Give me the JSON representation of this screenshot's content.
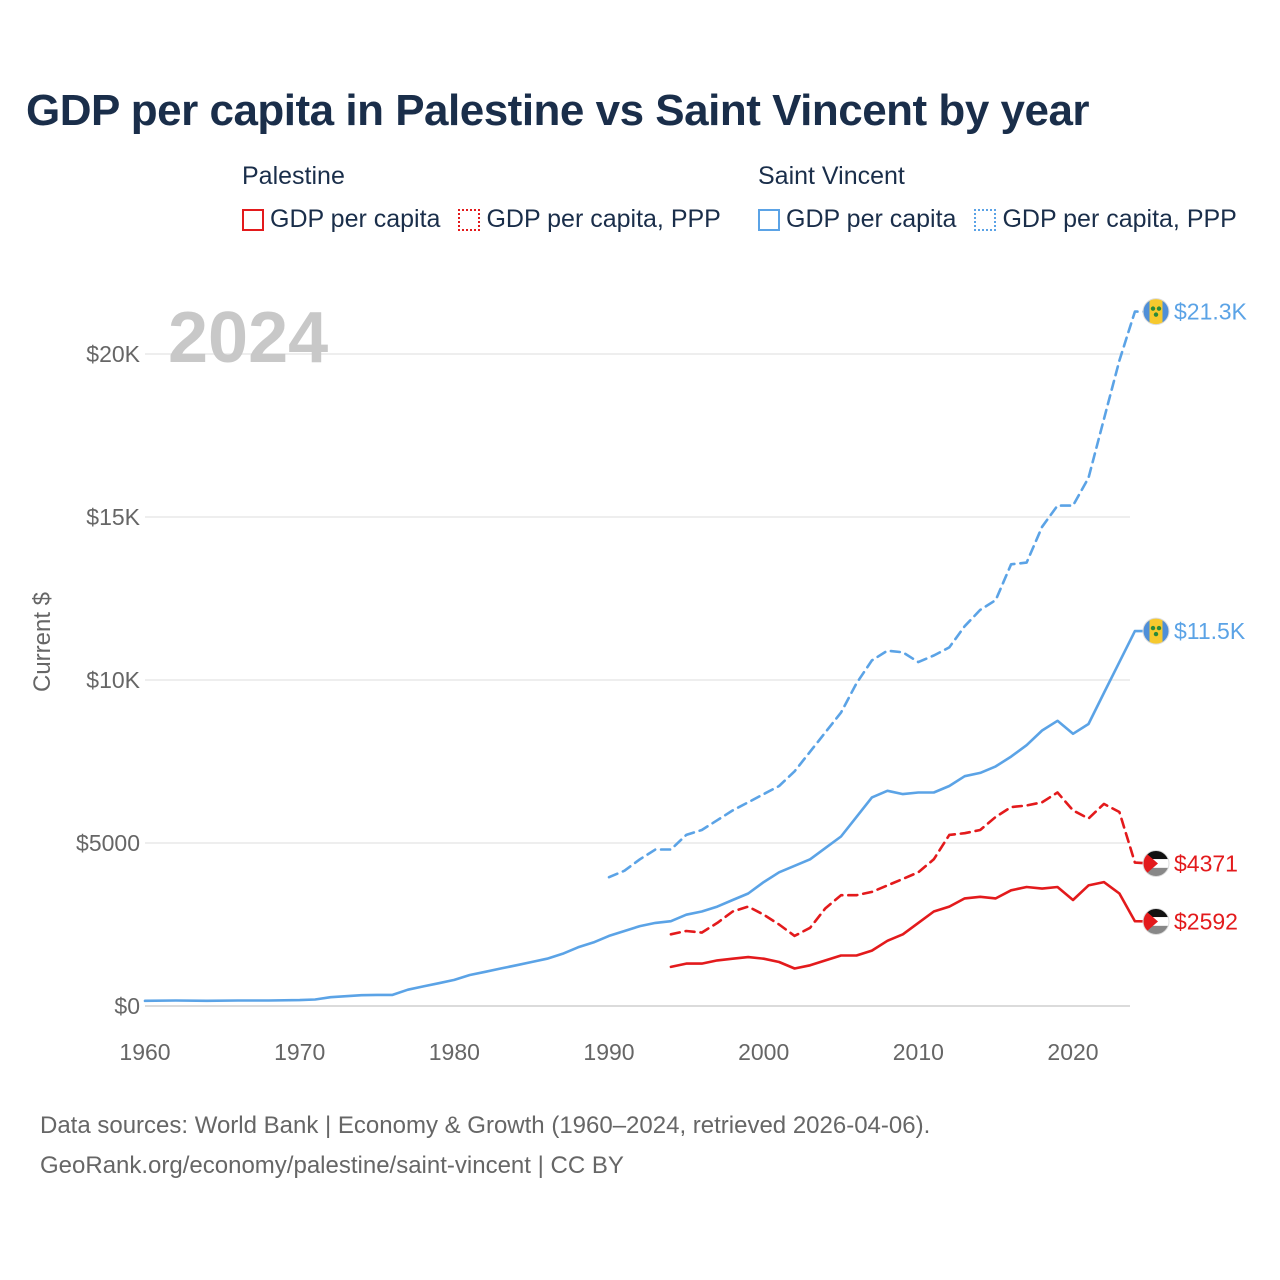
{
  "title": "GDP per capita in Palestine vs Saint Vincent by year",
  "legend": {
    "palestine": {
      "name": "Palestine",
      "gdp": "GDP per capita",
      "ppp": "GDP per capita, PPP",
      "color": "#e31a1c"
    },
    "saint_vincent": {
      "name": "Saint Vincent",
      "gdp": "GDP per capita",
      "ppp": "GDP per capita, PPP",
      "color": "#5ba3e6"
    }
  },
  "footer": {
    "line1": "Data sources: World Bank | Economy & Growth (1960–2024, retrieved 2026-04-06).",
    "line2": "GeoRank.org/economy/palestine/saint-vincent | CC BY"
  },
  "chart_data": {
    "type": "line",
    "title": "GDP per capita in Palestine vs Saint Vincent by year",
    "year_label": "2024",
    "xlabel": "",
    "ylabel": "Current $",
    "xlim": [
      1960,
      2025
    ],
    "ylim": [
      0,
      22000
    ],
    "x_ticks": [
      1960,
      1970,
      1980,
      1990,
      2000,
      2010,
      2020
    ],
    "x_tick_labels": [
      "1960",
      "1970",
      "1980",
      "1990",
      "2000",
      "2010",
      "2020"
    ],
    "y_ticks": [
      0,
      5000,
      10000,
      15000,
      20000
    ],
    "y_tick_labels": [
      "$0",
      "$5000",
      "$10K",
      "$15K",
      "$20K"
    ],
    "grid": true,
    "series": [
      {
        "name": "Saint Vincent GDP per capita, PPP",
        "country": "Saint Vincent",
        "style": "dashed",
        "color": "#5ba3e6",
        "end_label": "$21.3K",
        "x": [
          1990,
          1991,
          1992,
          1993,
          1994,
          1995,
          1996,
          1997,
          1998,
          1999,
          2000,
          2001,
          2002,
          2003,
          2004,
          2005,
          2006,
          2007,
          2008,
          2009,
          2010,
          2011,
          2012,
          2013,
          2014,
          2015,
          2016,
          2017,
          2018,
          2019,
          2020,
          2021,
          2022,
          2023,
          2024,
          2025
        ],
        "values": [
          3950,
          4150,
          4500,
          4800,
          4800,
          5250,
          5400,
          5700,
          6000,
          6250,
          6500,
          6750,
          7200,
          7800,
          8400,
          9000,
          9900,
          10600,
          10900,
          10850,
          10550,
          10750,
          11000,
          11650,
          12150,
          12450,
          13550,
          13600,
          14700,
          15350,
          15350,
          16200,
          18000,
          19800,
          21300,
          21300
        ]
      },
      {
        "name": "Saint Vincent GDP per capita",
        "country": "Saint Vincent",
        "style": "solid",
        "color": "#5ba3e6",
        "end_label": "$11.5K",
        "x": [
          1960,
          1962,
          1964,
          1966,
          1968,
          1970,
          1971,
          1972,
          1973,
          1974,
          1975,
          1976,
          1977,
          1978,
          1979,
          1980,
          1981,
          1982,
          1983,
          1984,
          1985,
          1986,
          1987,
          1988,
          1989,
          1990,
          1991,
          1992,
          1993,
          1994,
          1995,
          1996,
          1997,
          1998,
          1999,
          2000,
          2001,
          2002,
          2003,
          2004,
          2005,
          2006,
          2007,
          2008,
          2009,
          2010,
          2011,
          2012,
          2013,
          2014,
          2015,
          2016,
          2017,
          2018,
          2019,
          2020,
          2021,
          2022,
          2023,
          2024,
          2025
        ],
        "values": [
          160,
          170,
          160,
          170,
          170,
          180,
          200,
          270,
          300,
          330,
          340,
          340,
          500,
          600,
          700,
          800,
          950,
          1050,
          1150,
          1250,
          1350,
          1450,
          1600,
          1800,
          1950,
          2150,
          2300,
          2450,
          2550,
          2600,
          2800,
          2900,
          3050,
          3250,
          3450,
          3800,
          4100,
          4300,
          4500,
          4850,
          5200,
          5800,
          6400,
          6600,
          6500,
          6550,
          6550,
          6750,
          7050,
          7150,
          7350,
          7650,
          8000,
          8450,
          8750,
          8350,
          8650,
          9600,
          10550,
          11500,
          11500
        ]
      },
      {
        "name": "Palestine GDP per capita, PPP",
        "country": "Palestine",
        "style": "dashed",
        "color": "#e31a1c",
        "end_label": "$4371",
        "x": [
          1994,
          1995,
          1996,
          1997,
          1998,
          1999,
          2000,
          2001,
          2002,
          2003,
          2004,
          2005,
          2006,
          2007,
          2008,
          2009,
          2010,
          2011,
          2012,
          2013,
          2014,
          2015,
          2016,
          2017,
          2018,
          2019,
          2020,
          2021,
          2022,
          2023,
          2024,
          2025
        ],
        "values": [
          2200,
          2300,
          2250,
          2550,
          2900,
          3050,
          2800,
          2500,
          2150,
          2400,
          3000,
          3400,
          3400,
          3500,
          3700,
          3900,
          4100,
          4500,
          5250,
          5300,
          5400,
          5800,
          6100,
          6150,
          6250,
          6550,
          6000,
          5750,
          6200,
          5950,
          4400,
          4371
        ]
      },
      {
        "name": "Palestine GDP per capita",
        "country": "Palestine",
        "style": "solid",
        "color": "#e31a1c",
        "end_label": "$2592",
        "x": [
          1994,
          1995,
          1996,
          1997,
          1998,
          1999,
          2000,
          2001,
          2002,
          2003,
          2004,
          2005,
          2006,
          2007,
          2008,
          2009,
          2010,
          2011,
          2012,
          2013,
          2014,
          2015,
          2016,
          2017,
          2018,
          2019,
          2020,
          2021,
          2022,
          2023,
          2024,
          2025
        ],
        "values": [
          1200,
          1300,
          1300,
          1400,
          1450,
          1500,
          1450,
          1350,
          1150,
          1250,
          1400,
          1550,
          1550,
          1700,
          2000,
          2200,
          2550,
          2900,
          3050,
          3300,
          3350,
          3300,
          3550,
          3650,
          3600,
          3650,
          3250,
          3700,
          3800,
          3450,
          2600,
          2592
        ]
      }
    ]
  }
}
